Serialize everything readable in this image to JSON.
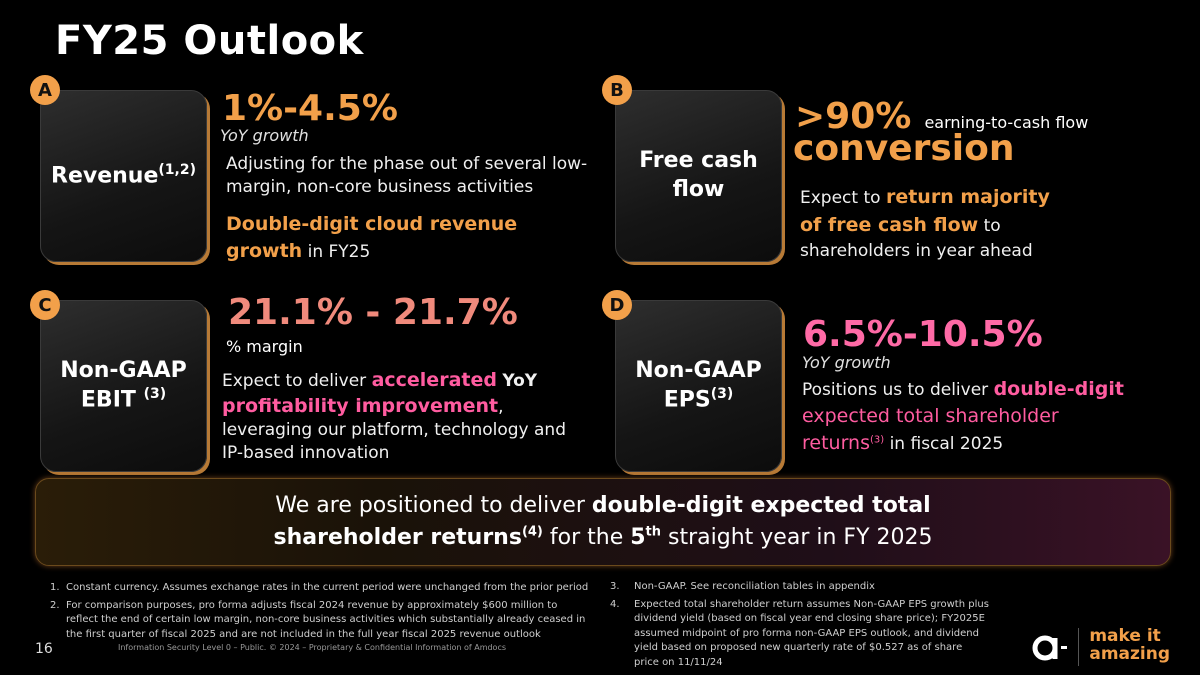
{
  "title": "FY25 Outlook",
  "quadrants": {
    "a": {
      "badge": "A",
      "card_label": "Revenue",
      "card_sup": "(1,2)",
      "metric": "1%-4.5%",
      "metric_sub": "YoY growth",
      "desc": "Adjusting for the phase out of several low-margin, non-core business activities",
      "highlight": "Double-digit cloud revenue growth",
      "highlight_tail": "in FY25"
    },
    "b": {
      "badge": "B",
      "card_label": "Free cash flow",
      "metric": ">90%",
      "metric_small": "earning-to-cash flow",
      "metric_word": "conversion",
      "desc_pre": "Expect to",
      "highlight": "return majority of free cash flow",
      "desc_post": "to shareholders in year ahead"
    },
    "c": {
      "badge": "C",
      "card_label_1": "Non-GAAP",
      "card_label_2": "EBIT",
      "card_sup": "(3)",
      "metric": "21.1% - 21.7%",
      "metric_sub": "% margin",
      "desc_pre": "Expect to deliver",
      "highlight_1": "accelerated",
      "yoy": "YoY",
      "highlight_2": "profitability improvement",
      "desc_post": ", leveraging our platform, technology and IP-based innovation"
    },
    "d": {
      "badge": "D",
      "card_label_1": "Non-GAAP",
      "card_label_2": "EPS",
      "card_sup": "(3)",
      "metric": "6.5%-10.5%",
      "metric_sub": "YoY growth",
      "desc_pre": "Positions us to deliver",
      "highlight_1": "double-digit",
      "highlight_2": "expected total shareholder returns",
      "sup": "(3)",
      "desc_post": "in fiscal 2025"
    }
  },
  "banner": {
    "line1_pre": "We are positioned to deliver",
    "line1_bold": "double-digit expected total",
    "line2_bold": "shareholder returns",
    "line2_sup": "(4)",
    "line2_mid": "for the",
    "line2_num": "5",
    "line2_th": "th",
    "line2_post": "straight year in FY 2025"
  },
  "footnotes": [
    {
      "n": "1.",
      "text": "Constant currency. Assumes exchange rates in the current period were unchanged from the prior period"
    },
    {
      "n": "2.",
      "text": "For comparison purposes, pro forma adjusts fiscal 2024 revenue by approximately $600 million to reflect the end of certain low margin, non-core business activities which substantially already ceased in the first quarter of fiscal 2025 and are not included in the full year fiscal 2025 revenue outlook"
    },
    {
      "n": "3.",
      "text": "Non-GAAP. See reconciliation tables in appendix"
    },
    {
      "n": "4.",
      "text": "Expected total shareholder return assumes Non-GAAP EPS growth plus dividend yield (based on fiscal year end closing share price); FY2025E assumed midpoint of pro forma non-GAAP EPS outlook, and dividend yield based on proposed new quarterly rate of $0.527 as of share price on 11/11/24"
    }
  ],
  "page_number": "16",
  "classification": "Information Security Level 0 – Public. © 2024 – Proprietary & Confidential Information of Amdocs",
  "brand": {
    "line1": "make it",
    "line2": "amazing"
  },
  "colors": {
    "accent_orange": "#f2a04a",
    "accent_pink": "#ff5ca0",
    "background": "#000000"
  }
}
